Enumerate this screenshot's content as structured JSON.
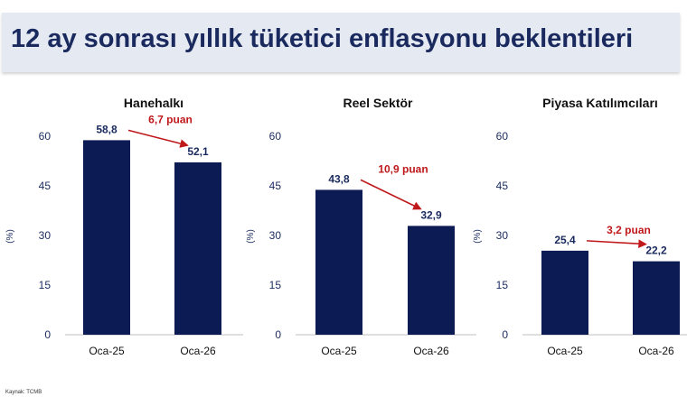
{
  "title": "12 ay sonrası yıllık tüketici enflasyonu beklentileri",
  "source": "Kaynak: TCMB",
  "colors": {
    "bar": "#0d1b55",
    "arrow": "#c0191c",
    "axis_text": "#1a2a5e",
    "title_bg": "#e4e9f2"
  },
  "chart_data": [
    {
      "type": "bar",
      "title": "Hanehalkı",
      "ylabel": "(%)",
      "ylim": [
        0,
        60
      ],
      "yticks": [
        "0",
        "15",
        "30",
        "45",
        "60"
      ],
      "categories": [
        "Oca-25",
        "Oca-26"
      ],
      "values": [
        58.8,
        52.1
      ],
      "value_labels": [
        "58,8",
        "52,1"
      ],
      "change_label": "6,7 puan"
    },
    {
      "type": "bar",
      "title": "Reel Sektör",
      "ylabel": "(%)",
      "ylim": [
        0,
        60
      ],
      "yticks": [
        "0",
        "15",
        "30",
        "45",
        "60"
      ],
      "categories": [
        "Oca-25",
        "Oca-26"
      ],
      "values": [
        43.8,
        32.9
      ],
      "value_labels": [
        "43,8",
        "32,9"
      ],
      "change_label": "10,9 puan"
    },
    {
      "type": "bar",
      "title": "Piyasa Katılımcıları",
      "ylabel": "(%)",
      "ylim": [
        0,
        60
      ],
      "yticks": [
        "0",
        "15",
        "30",
        "45",
        "60"
      ],
      "categories": [
        "Oca-25",
        "Oca-26"
      ],
      "values": [
        25.4,
        22.2
      ],
      "value_labels": [
        "25,4",
        "22,2"
      ],
      "change_label": "3,2 puan"
    }
  ]
}
